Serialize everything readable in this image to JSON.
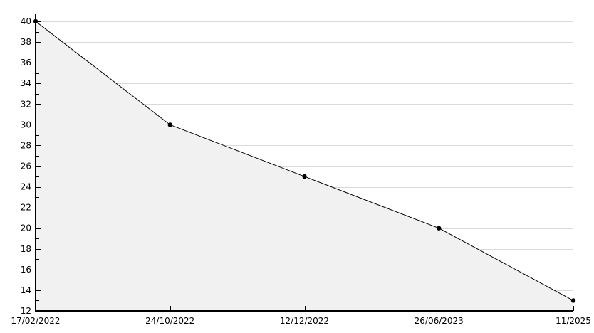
{
  "chart_data": {
    "type": "area",
    "title": "",
    "xlabel": "",
    "ylabel": "",
    "categories": [
      "17/02/2022",
      "24/10/2022",
      "12/12/2022",
      "26/06/2023",
      "11/2025"
    ],
    "values": [
      40,
      30,
      25,
      20,
      13
    ],
    "ylim": [
      12,
      40
    ],
    "yticks_major": [
      12,
      14,
      16,
      18,
      20,
      22,
      24,
      26,
      28,
      30,
      32,
      34,
      36,
      38,
      40
    ],
    "yticks_minor": [
      13,
      15,
      17,
      19,
      21,
      23,
      25,
      27,
      29,
      31,
      33,
      35,
      37,
      39
    ],
    "grid": "horizontal-major-only",
    "grid_hidden_under_area": true,
    "legend_position": "none",
    "marker": "filled-circle",
    "colors": {
      "line": "#000000",
      "point": "#000000",
      "area_fill": "#f1f1f1",
      "gridline": "#d9d9d9",
      "axis": "#000000",
      "background": "#ffffff",
      "label_text": "#000000"
    }
  }
}
